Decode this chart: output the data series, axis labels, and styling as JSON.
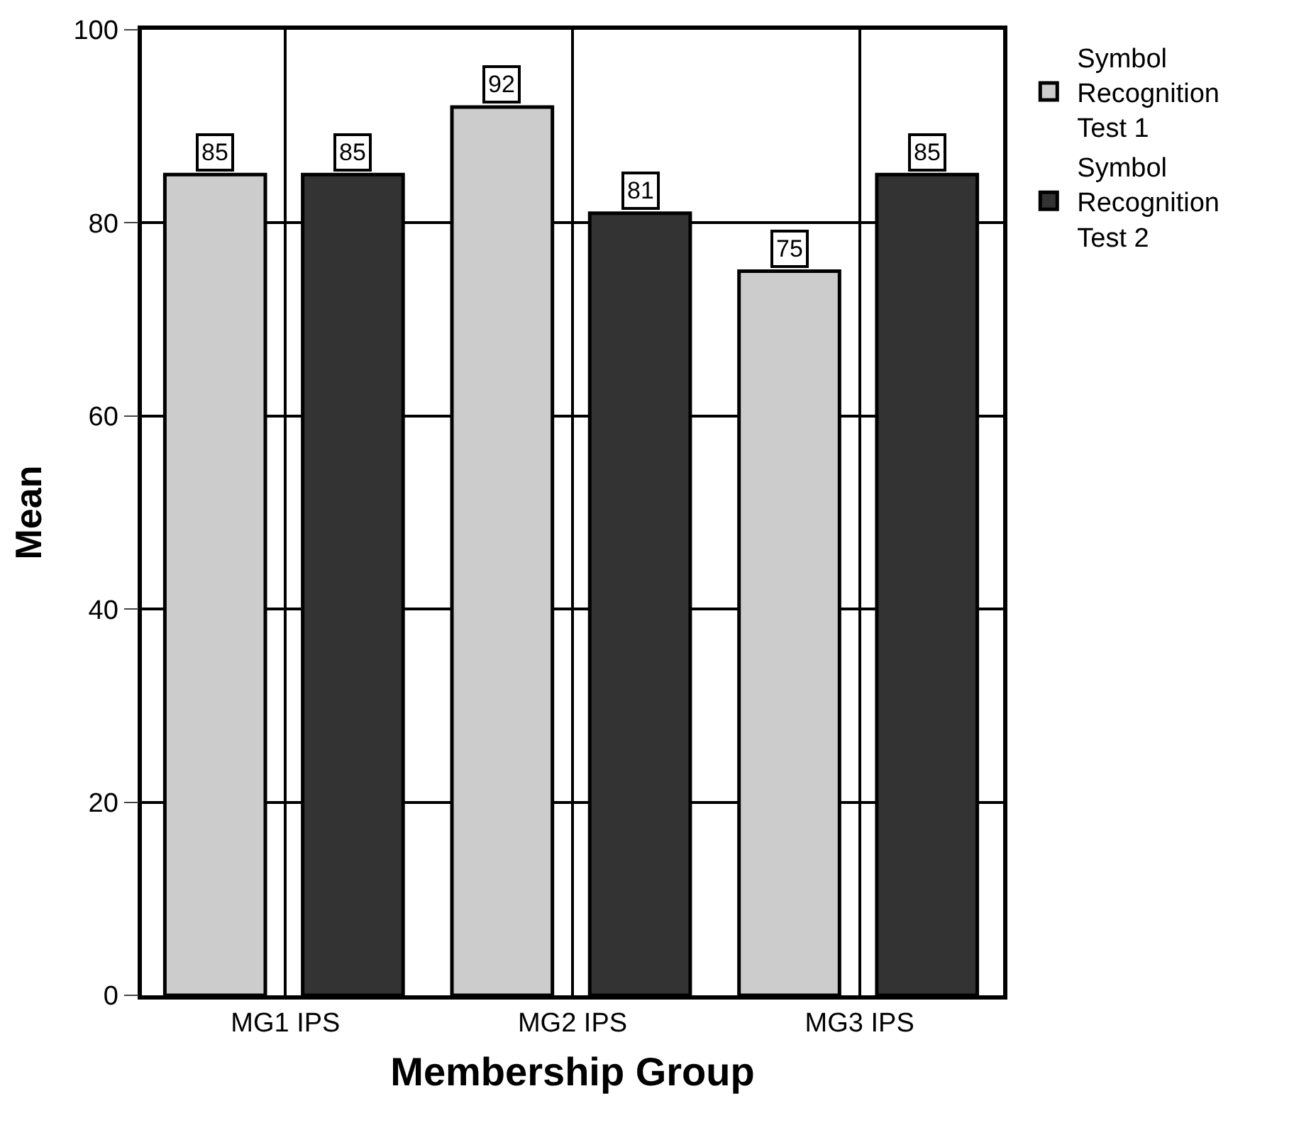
{
  "chart_data": {
    "type": "bar",
    "xlabel": "Membership Group",
    "ylabel": "Mean",
    "categories": [
      "MG1 IPS",
      "MG2 IPS",
      "MG3 IPS"
    ],
    "series": [
      {
        "name": "Symbol Recognition Test 1",
        "color": "#cccccc",
        "values": [
          85,
          92,
          75
        ]
      },
      {
        "name": "Symbol Recognition Test 2",
        "color": "#333333",
        "values": [
          85,
          81,
          85
        ]
      }
    ],
    "ylim": [
      0,
      100
    ],
    "yticks": [
      0,
      20,
      40,
      60,
      80,
      100
    ],
    "grid": true,
    "legend": "top right",
    "data_labels": true
  }
}
